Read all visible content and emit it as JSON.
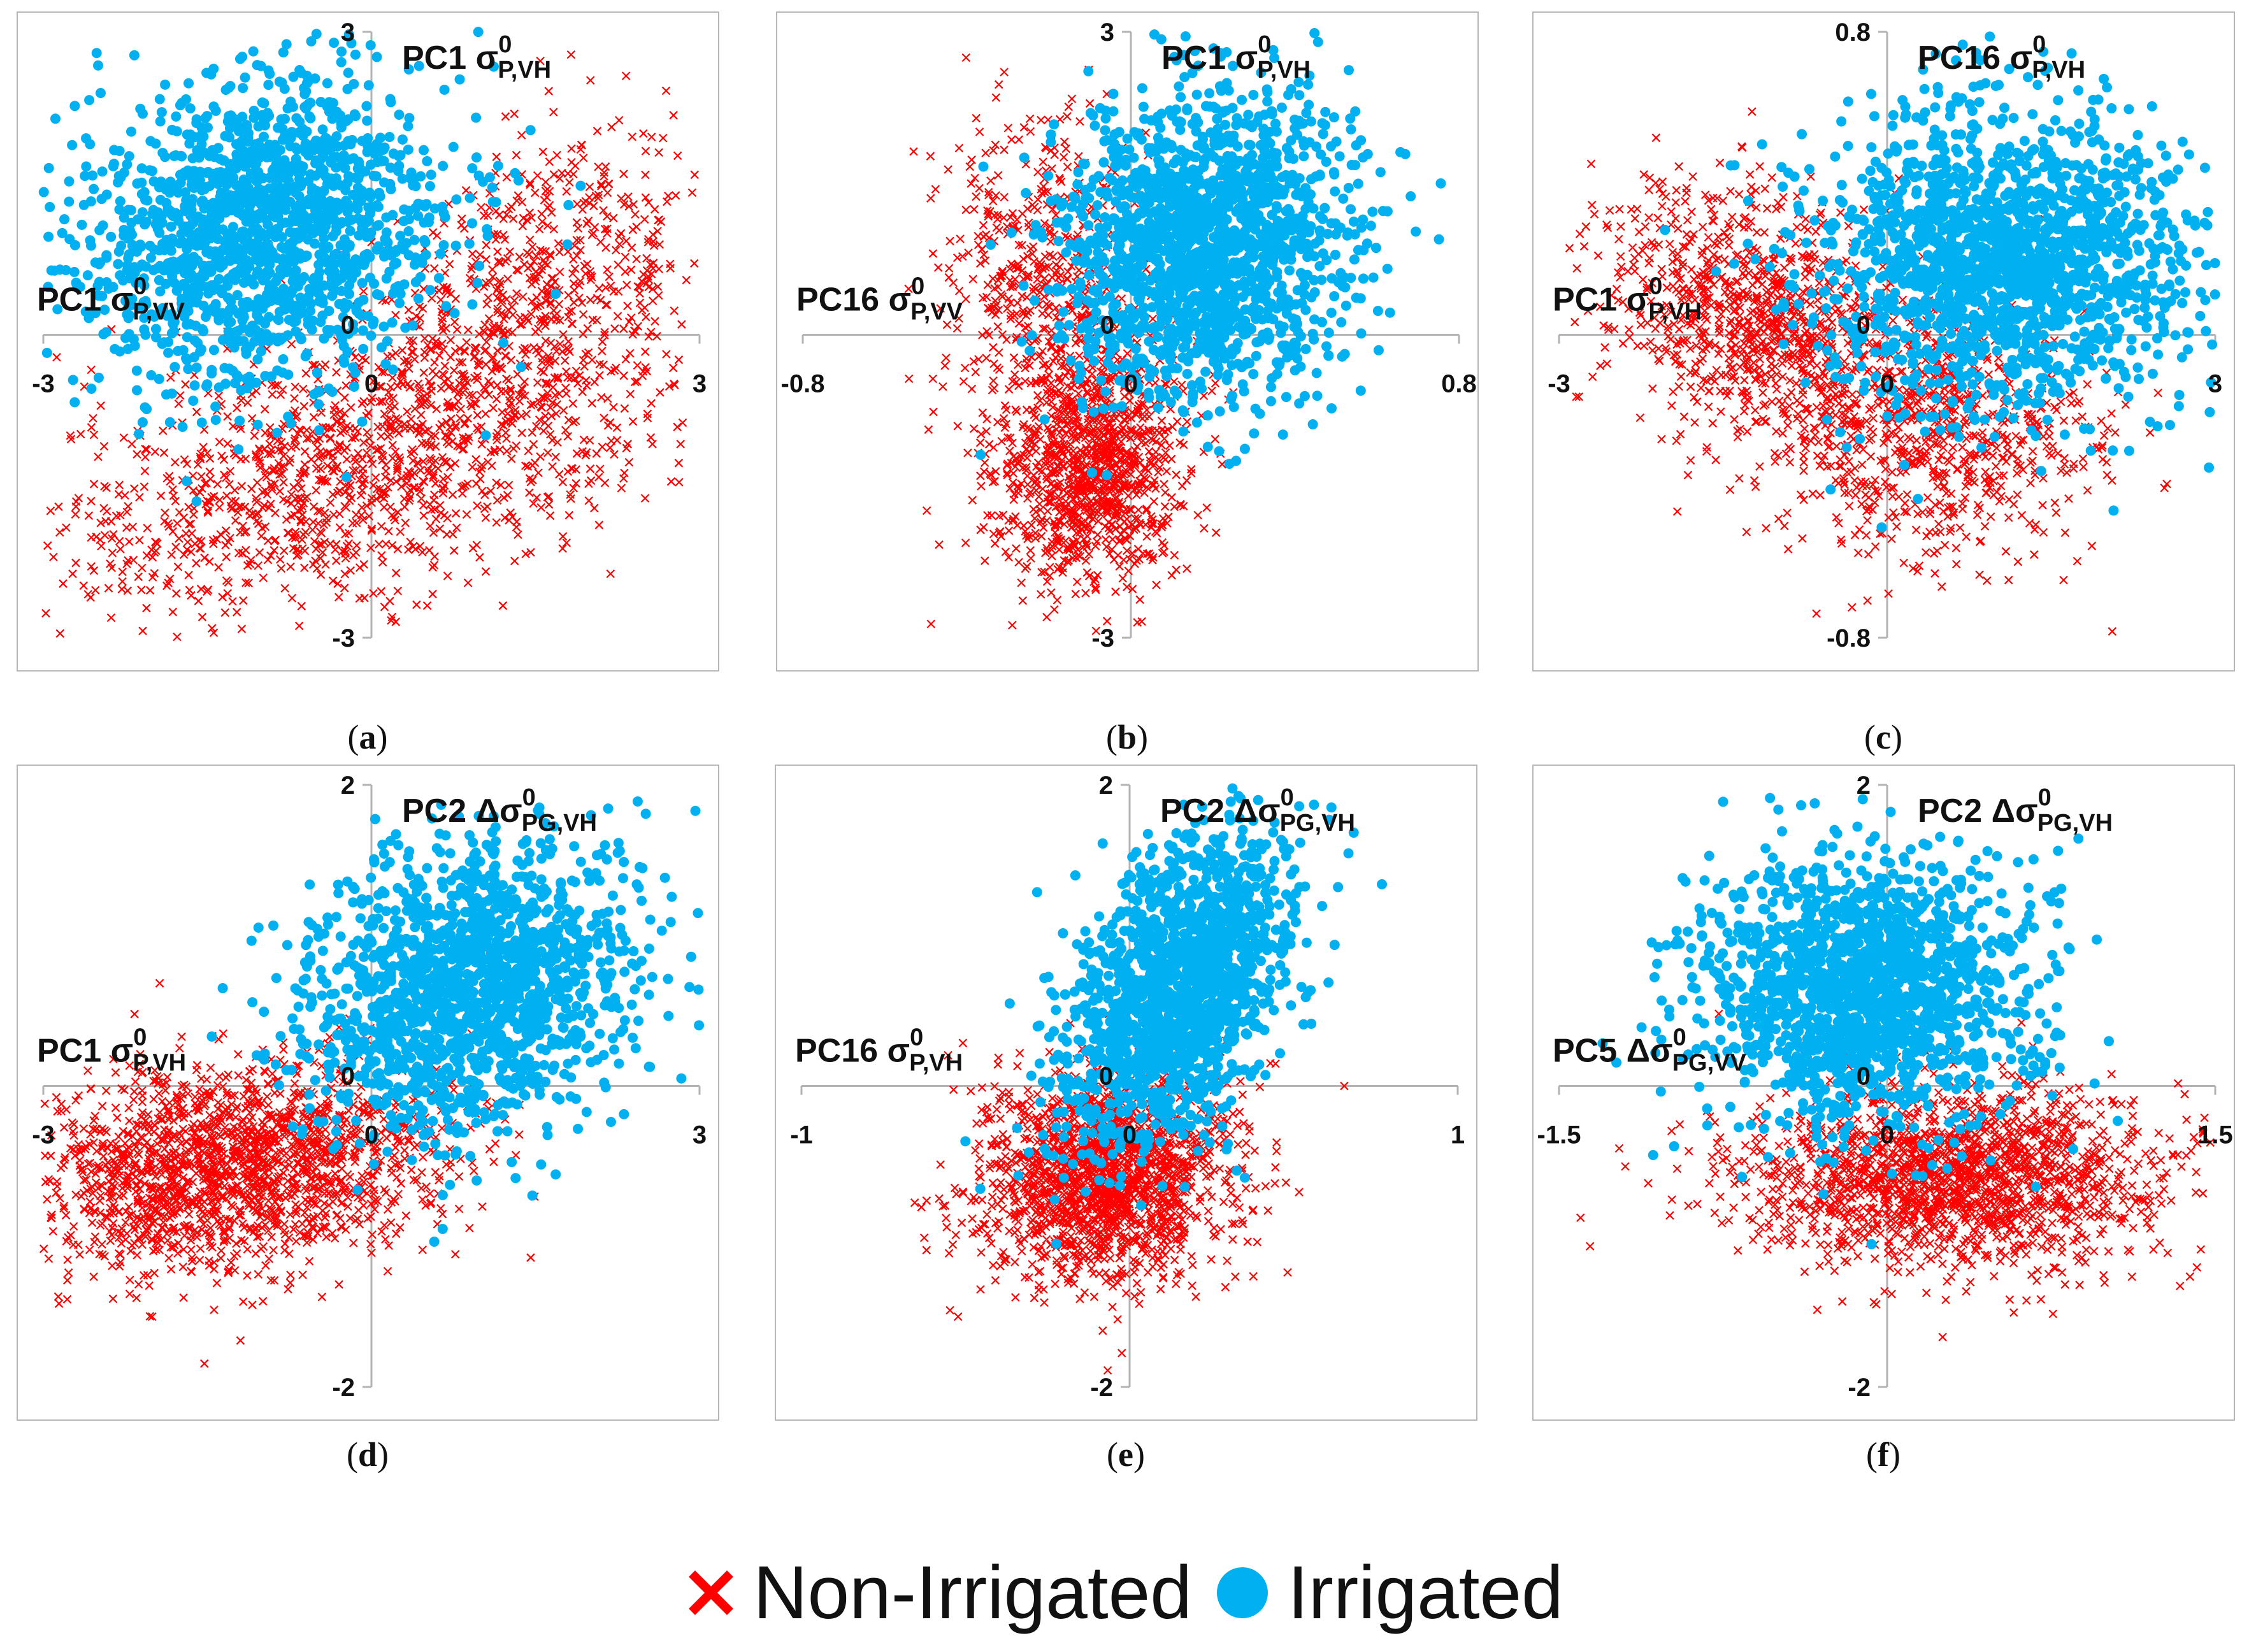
{
  "legend": {
    "items": [
      {
        "name": "Non-Irrigated",
        "color": "#ff0000",
        "marker": "x-mark"
      },
      {
        "name": "Irrigated",
        "color": "#00b0f0",
        "marker": "dot"
      }
    ]
  },
  "chart_data": [
    {
      "type": "scatter",
      "caption": "a",
      "xlabel": {
        "main": "PC1 σ",
        "sup": "0",
        "sub": "P,VV"
      },
      "ylabel": {
        "main": "PC1 σ",
        "sup": "0",
        "sub": "P,VH"
      },
      "xlim": [
        -3,
        3
      ],
      "ylim": [
        -3,
        3
      ],
      "xticks": [
        "-3",
        "0",
        "3"
      ],
      "yticks": [
        "3",
        "0",
        "-3"
      ],
      "series": [
        {
          "name": "Non-Irrigated",
          "clusters": [
            {
              "cx": 0.0,
              "cy": -1.2,
              "sx": 1.5,
              "sy": 0.8,
              "rho": 0.55,
              "n": 1400
            },
            {
              "cx": 1.6,
              "cy": 0.6,
              "sx": 0.7,
              "sy": 0.8,
              "rho": 0.4,
              "n": 500
            }
          ]
        },
        {
          "name": "Irrigated",
          "clusters": [
            {
              "cx": -1.0,
              "cy": 1.05,
              "sx": 0.85,
              "sy": 0.75,
              "rho": 0.15,
              "n": 1600
            }
          ]
        }
      ]
    },
    {
      "type": "scatter",
      "caption": "b",
      "xlabel": {
        "main": "PC16 σ",
        "sup": "0",
        "sub": "P,VV"
      },
      "ylabel": {
        "main": "PC1 σ",
        "sup": "0",
        "sub": "P,VH"
      },
      "xlim": [
        -0.8,
        0.8
      ],
      "ylim": [
        -3,
        3
      ],
      "xticks": [
        "-0.8",
        "0",
        "0.8"
      ],
      "yticks": [
        "3",
        "0",
        "-3"
      ],
      "series": [
        {
          "name": "Non-Irrigated",
          "clusters": [
            {
              "cx": -0.1,
              "cy": -1.3,
              "sx": 0.12,
              "sy": 0.6,
              "rho": 0.1,
              "n": 1100
            },
            {
              "cx": -0.22,
              "cy": 0.6,
              "sx": 0.12,
              "sy": 0.8,
              "rho": 0.0,
              "n": 500
            }
          ]
        },
        {
          "name": "Irrigated",
          "clusters": [
            {
              "cx": 0.18,
              "cy": 0.9,
              "sx": 0.17,
              "sy": 0.75,
              "rho": 0.1,
              "n": 1700
            }
          ]
        }
      ]
    },
    {
      "type": "scatter",
      "caption": "c",
      "xlabel": {
        "main": "PC1 σ",
        "sup": "0",
        "sub": "P,VH"
      },
      "ylabel": {
        "main": "PC16 σ",
        "sup": "0",
        "sub": "P,VH"
      },
      "xlim": [
        -3,
        3
      ],
      "ylim": [
        -0.8,
        0.8
      ],
      "xticks": [
        "-3",
        "0",
        "3"
      ],
      "yticks": [
        "0.8",
        "0",
        "-0.8"
      ],
      "series": [
        {
          "name": "Non-Irrigated",
          "clusters": [
            {
              "cx": -1.2,
              "cy": 0.05,
              "sx": 0.7,
              "sy": 0.17,
              "rho": -0.2,
              "n": 900
            },
            {
              "cx": 0.4,
              "cy": -0.25,
              "sx": 0.75,
              "sy": 0.17,
              "rho": 0.0,
              "n": 800
            }
          ]
        },
        {
          "name": "Irrigated",
          "clusters": [
            {
              "cx": 1.1,
              "cy": 0.2,
              "sx": 0.85,
              "sy": 0.2,
              "rho": 0.0,
              "n": 1700
            }
          ]
        }
      ]
    },
    {
      "type": "scatter",
      "caption": "d",
      "xlabel": {
        "main": "PC1 σ",
        "sup": "0",
        "sub": "P,VH"
      },
      "ylabel": {
        "main": "PC2 Δσ",
        "sup": "0",
        "sub": "PG,VH"
      },
      "xlim": [
        -3,
        3
      ],
      "ylim": [
        -2,
        2
      ],
      "xticks": [
        "-3",
        "0",
        "3"
      ],
      "yticks": [
        "2",
        "0",
        "-2"
      ],
      "series": [
        {
          "name": "Non-Irrigated",
          "clusters": [
            {
              "cx": -1.3,
              "cy": -0.55,
              "sx": 0.95,
              "sy": 0.35,
              "rho": 0.2,
              "n": 1800
            }
          ]
        },
        {
          "name": "Irrigated",
          "clusters": [
            {
              "cx": 0.9,
              "cy": 0.65,
              "sx": 0.75,
              "sy": 0.48,
              "rho": 0.2,
              "n": 1600
            }
          ]
        }
      ]
    },
    {
      "type": "scatter",
      "caption": "e",
      "xlabel": {
        "main": "PC16 σ",
        "sup": "0",
        "sub": "P,VH"
      },
      "ylabel": {
        "main": "PC2 Δσ",
        "sup": "0",
        "sub": "PG,VH"
      },
      "xlim": [
        -1,
        1
      ],
      "ylim": [
        -2,
        2
      ],
      "xticks": [
        "-1",
        "0",
        "1"
      ],
      "yticks": [
        "2",
        "0",
        "-2"
      ],
      "series": [
        {
          "name": "Non-Irrigated",
          "clusters": [
            {
              "cx": -0.08,
              "cy": -0.6,
              "sx": 0.19,
              "sy": 0.35,
              "rho": 0.1,
              "n": 1700
            }
          ]
        },
        {
          "name": "Irrigated",
          "clusters": [
            {
              "cx": 0.15,
              "cy": 0.65,
              "sx": 0.17,
              "sy": 0.5,
              "rho": 0.45,
              "n": 1600
            }
          ]
        }
      ]
    },
    {
      "type": "scatter",
      "caption": "f",
      "xlabel": {
        "main": "PC5 Δσ",
        "sup": "0",
        "sub": "PG,VV"
      },
      "ylabel": {
        "main": "PC2 Δσ",
        "sup": "0",
        "sub": "PG,VH"
      },
      "xlim": [
        -1.5,
        1.5
      ],
      "ylim": [
        -2,
        2
      ],
      "xticks": [
        "-1.5",
        "0",
        "1.5"
      ],
      "yticks": [
        "2",
        "0",
        "-2"
      ],
      "series": [
        {
          "name": "Non-Irrigated",
          "clusters": [
            {
              "cx": 0.3,
              "cy": -0.6,
              "sx": 0.48,
              "sy": 0.3,
              "rho": 0.0,
              "n": 1700
            }
          ]
        },
        {
          "name": "Irrigated",
          "clusters": [
            {
              "cx": -0.1,
              "cy": 0.65,
              "sx": 0.38,
              "sy": 0.45,
              "rho": 0.0,
              "n": 1600
            }
          ]
        }
      ]
    }
  ]
}
